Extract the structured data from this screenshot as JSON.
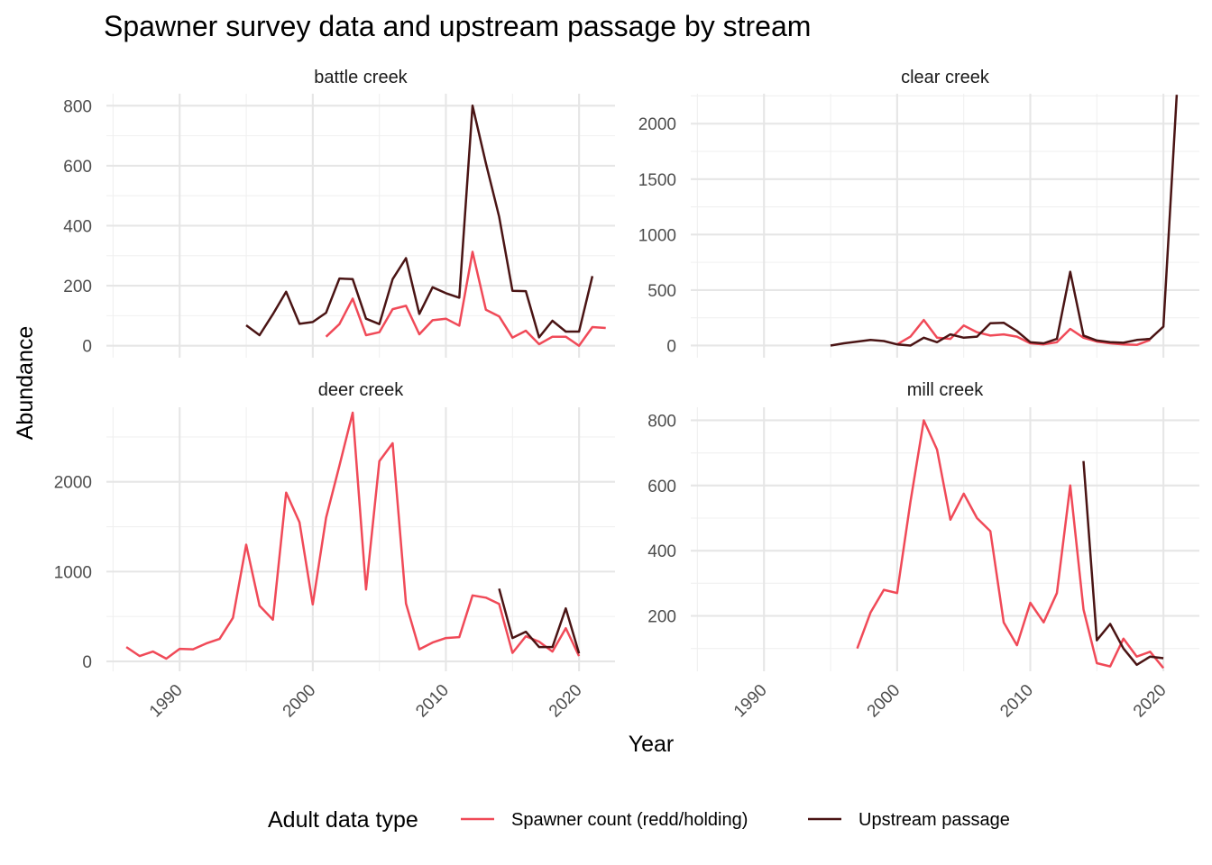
{
  "title": "Spawner survey data and upstream passage by stream",
  "xlabel": "Year",
  "ylabel": "Abundance",
  "legend": {
    "title": "Adult data type",
    "position": "bottom",
    "entries": [
      {
        "label": "Spawner count (redd/holding)",
        "color": "#f04a58"
      },
      {
        "label": "Upstream passage",
        "color": "#4a1414"
      }
    ]
  },
  "chart_data": {
    "type": "line",
    "layout": "facet grid 2x2",
    "x_range": [
      1984.5,
      2022.7
    ],
    "x_ticks": [
      1990,
      2000,
      2010,
      2020
    ],
    "grid": true,
    "panels": [
      {
        "name": "battle creek",
        "ylim": [
          -40,
          840
        ],
        "y_ticks": [
          0,
          200,
          400,
          600,
          800
        ],
        "y_tick_labels": [
          "0",
          "200",
          "400",
          "600",
          "800"
        ],
        "series": [
          {
            "name": "Spawner count (redd/holding)",
            "x": [
              2001,
              2002,
              2003,
              2004,
              2005,
              2006,
              2007,
              2008,
              2009,
              2010,
              2011,
              2012,
              2013,
              2014,
              2015,
              2016,
              2017,
              2018,
              2019,
              2020,
              2021,
              2022
            ],
            "y": [
              30,
              72,
              157,
              35,
              45,
              122,
              133,
              38,
              85,
              90,
              67,
              313,
              120,
              98,
              27,
              50,
              5,
              30,
              30,
              0,
              62,
              59
            ]
          },
          {
            "name": "Upstream passage",
            "x": [
              1995,
              1996,
              1997,
              1998,
              1999,
              2000,
              2001,
              2002,
              2003,
              2004,
              2005,
              2006,
              2007,
              2008,
              2009,
              2010,
              2011,
              2012,
              2013,
              2014,
              2015,
              2016,
              2017,
              2018,
              2019,
              2020,
              2021
            ],
            "y": [
              68,
              35,
              105,
              180,
              73,
              79,
              110,
              224,
              222,
              90,
              72,
              222,
              292,
              106,
              195,
              175,
              160,
              800,
              608,
              430,
              183,
              182,
              28,
              83,
              47,
              47,
              232
            ]
          }
        ]
      },
      {
        "name": "clear creek",
        "ylim": [
          -110,
          2270
        ],
        "y_ticks": [
          0,
          500,
          1000,
          1500,
          2000
        ],
        "y_tick_labels": [
          "0",
          "500",
          "1000",
          "1500",
          "2000"
        ],
        "series": [
          {
            "name": "Spawner count (redd/holding)",
            "x": [
              2000,
              2001,
              2002,
              2003,
              2004,
              2005,
              2006,
              2007,
              2008,
              2009,
              2010,
              2011,
              2012,
              2013,
              2014,
              2015,
              2016,
              2017,
              2018,
              2019
            ],
            "y": [
              10,
              80,
              230,
              70,
              60,
              180,
              120,
              90,
              100,
              80,
              20,
              10,
              30,
              150,
              70,
              35,
              20,
              10,
              5,
              50
            ]
          },
          {
            "name": "Upstream passage",
            "x": [
              1995,
              1996,
              1997,
              1998,
              1999,
              2000,
              2001,
              2002,
              2003,
              2004,
              2005,
              2006,
              2007,
              2008,
              2009,
              2010,
              2011,
              2012,
              2013,
              2014,
              2015,
              2016,
              2017,
              2018,
              2019,
              2020,
              2021
            ],
            "y": [
              0,
              20,
              35,
              50,
              40,
              10,
              0,
              70,
              30,
              100,
              70,
              80,
              200,
              205,
              130,
              30,
              20,
              60,
              665,
              90,
              45,
              30,
              25,
              50,
              60,
              170,
              2260
            ]
          }
        ]
      },
      {
        "name": "deer creek",
        "ylim": [
          -110,
          2830
        ],
        "y_ticks": [
          0,
          1000,
          2000
        ],
        "y_tick_labels": [
          "0",
          "1000",
          "2000"
        ],
        "series": [
          {
            "name": "Spawner count (redd/holding)",
            "x": [
              1986,
              1987,
              1988,
              1989,
              1990,
              1991,
              1992,
              1993,
              1994,
              1995,
              1996,
              1997,
              1998,
              1999,
              2000,
              2001,
              2002,
              2003,
              2004,
              2005,
              2006,
              2007,
              2008,
              2009,
              2010,
              2011,
              2012,
              2013,
              2014,
              2015,
              2016,
              2017,
              2018,
              2019,
              2020
            ],
            "y": [
              160,
              60,
              110,
              30,
              140,
              135,
              200,
              250,
              485,
              1300,
              620,
              465,
              1880,
              1550,
              635,
              1600,
              2180,
              2770,
              800,
              2230,
              2430,
              645,
              135,
              210,
              260,
              270,
              735,
              710,
              640,
              95,
              280,
              220,
              110,
              370,
              60
            ]
          },
          {
            "name": "Upstream passage",
            "x": [
              2014,
              2015,
              2016,
              2017,
              2018,
              2019,
              2020
            ],
            "y": [
              810,
              260,
              330,
              160,
              160,
              590,
              90
            ]
          }
        ]
      },
      {
        "name": "mill creek",
        "ylim": [
          30,
          840
        ],
        "y_ticks": [
          200,
          400,
          600,
          800
        ],
        "y_tick_labels": [
          "200",
          "400",
          "600",
          "800"
        ],
        "series": [
          {
            "name": "Spawner count (redd/holding)",
            "x": [
              1997,
              1998,
              1999,
              2000,
              2001,
              2002,
              2003,
              2004,
              2005,
              2006,
              2007,
              2008,
              2009,
              2010,
              2011,
              2012,
              2013,
              2014,
              2015,
              2016,
              2017,
              2018,
              2019,
              2020
            ],
            "y": [
              100,
              210,
              280,
              270,
              550,
              800,
              710,
              495,
              575,
              500,
              460,
              180,
              110,
              240,
              180,
              270,
              600,
              220,
              55,
              45,
              130,
              75,
              90,
              40
            ]
          },
          {
            "name": "Upstream passage",
            "x": [
              2014,
              2015,
              2016,
              2017,
              2018,
              2019,
              2020
            ],
            "y": [
              675,
              125,
              175,
              100,
              50,
              75,
              70
            ]
          }
        ]
      }
    ]
  }
}
